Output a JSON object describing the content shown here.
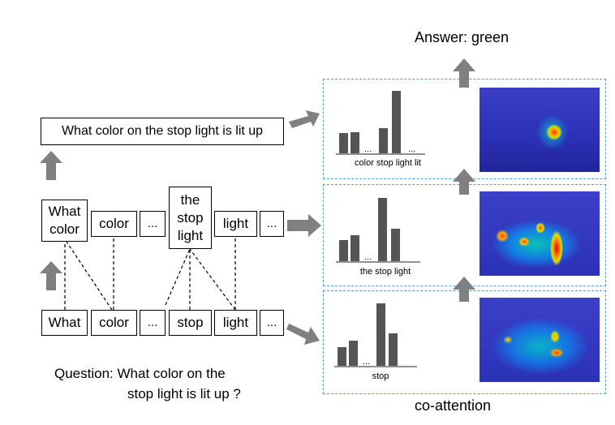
{
  "answer": "Answer: green",
  "question": {
    "line1": "Question: What color on the",
    "line2": "stop light is lit up  ?"
  },
  "coattention_label": "co-attention",
  "sentence_box": "What color on the stop light is lit up",
  "phrase_level": {
    "what_color": [
      "What",
      "color"
    ],
    "color": "color",
    "ellipsis1": "...",
    "the_stop_light": [
      "the",
      "stop",
      "light"
    ],
    "light": "light",
    "ellipsis2": "..."
  },
  "word_level": {
    "what": "What",
    "color": "color",
    "ellipsis1": "...",
    "stop": "stop",
    "light": "light",
    "ellipsis2": "..."
  },
  "panels": [
    {
      "caption": "color stop light lit",
      "ellipsis": [
        "...",
        "..."
      ]
    },
    {
      "caption": "the stop light",
      "ellipsis": [
        "..."
      ]
    },
    {
      "caption": "stop",
      "ellipsis": [
        "..."
      ]
    }
  ],
  "colors": {
    "arrow": "#808080",
    "bar": "#555555",
    "dashed": "#5b9bd5",
    "heat_bg": "#2b2fc0"
  }
}
